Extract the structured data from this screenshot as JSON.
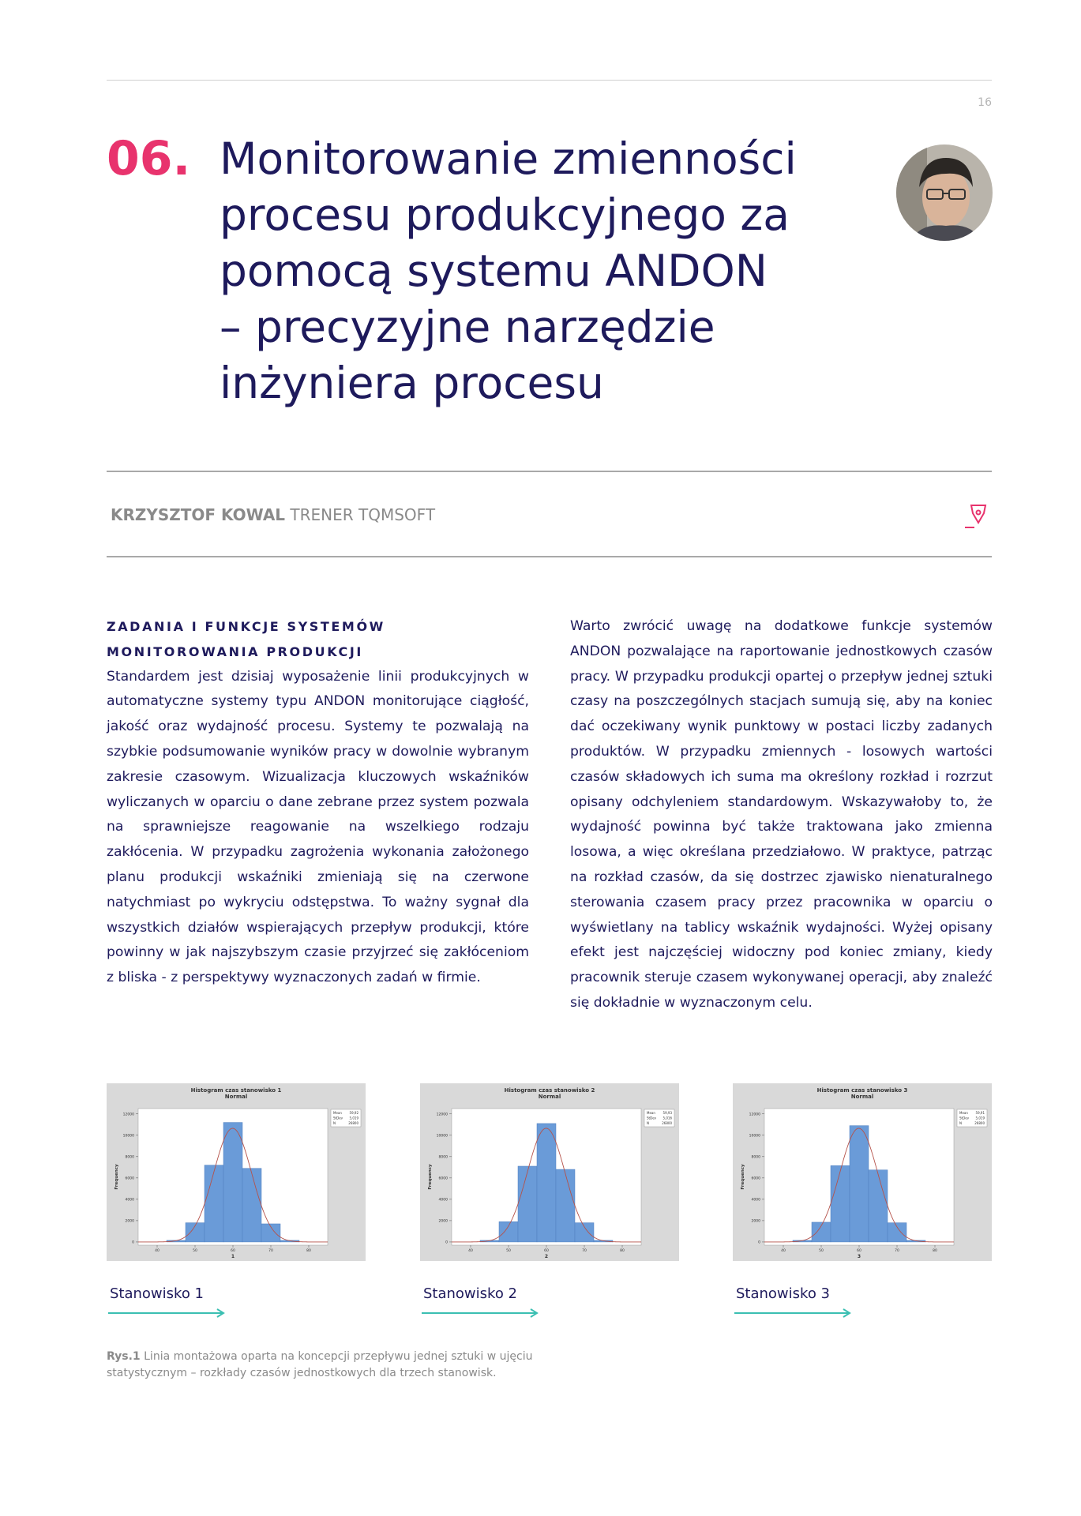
{
  "header": {
    "page_number": "16"
  },
  "article": {
    "number": "06.",
    "title_lines": [
      "Monitorowanie zmienności",
      "procesu produkcyjnego za",
      "pomocą systemu ANDON",
      "– precyzyjne narzędzie",
      "inżyniera procesu"
    ],
    "author": {
      "name": "KRZYSZTOF KOWAL",
      "role": "TRENER TQMSOFT"
    },
    "left_column": {
      "heading": "ZADANIA I FUNKCJE SYSTEMÓW MONITOROWANIA PRODUKCJI",
      "text": "Standardem jest dzisiaj wyposażenie linii produkcyjnych w automatyczne systemy typu ANDON monitorujące ciągłość, jakość oraz wydajność procesu. Systemy te pozwalają na szybkie podsumowanie wyników pracy w dowolnie wybranym zakresie czasowym. Wizualizacja kluczowych wskaźników wyliczanych w oparciu o dane zebrane przez system pozwala na sprawniejsze reagowanie na wszelkiego rodzaju zakłócenia. W przypadku zagrożenia wykonania założonego planu produkcji wskaźniki zmieniają się na czerwone natychmiast po wykryciu odstępstwa. To ważny sygnał dla wszystkich działów wspierających przepływ produkcji, które powinny w jak najszybszym czasie przyjrzeć się zakłóceniom z bliska - z perspektywy wyznaczonych zadań w firmie."
    },
    "right_column": {
      "text": "Warto zwrócić uwagę na dodatkowe funkcje systemów ANDON pozwalające na raportowanie jednostkowych czasów pracy. W przypadku produkcji opartej o przepływ jednej sztuki czasy na poszczególnych stacjach sumują się, aby na koniec dać oczekiwany wynik punktowy w postaci liczby zadanych produktów. W przypadku zmiennych - losowych wartości czasów składowych ich suma ma określony rozkład i rozrzut opisany odchyleniem standardowym. Wskazywałoby to, że wydajność powinna być także traktowana jako zmienna losowa, a więc określana przedziałowo. W praktyce, patrząc na rozkład czasów, da się dostrzec zjawisko nienaturalnego sterowania czasem pracy przez pracownika w oparciu o wyświetlany na tablicy wskaźnik wydajności. Wyżej opisany efekt jest najczęściej widoczny pod koniec zmiany, kiedy pracownik steruje czasem wykonywanej operacji, aby znaleźć się dokładnie w wyznaczonym celu."
    },
    "figure_labels": [
      "Stanowisko 1",
      "Stanowisko 2",
      "Stanowisko 3"
    ],
    "caption": {
      "label": "Rys.1",
      "text": "Linia montażowa oparta na koncepcji przepływu jednej sztuki w ujęciu statystycznym – rozkłady czasów jednostkowych dla trzech stanowisk."
    }
  },
  "chart_data": [
    {
      "type": "histogram",
      "title": "Histogram czas stanowisko 1",
      "subtitle": "Normal",
      "xlabel": "1",
      "ylabel": "Frequency",
      "bins": [
        42.5,
        47.5,
        52.5,
        57.5,
        62.5,
        67.5,
        72.5,
        77.5
      ],
      "values": [
        150,
        1800,
        7200,
        11200,
        6900,
        1700,
        150
      ],
      "color": "#6a9bd8",
      "fit_color": "#b5524a",
      "stats": [
        {
          "name": "Mean",
          "value": 59.92,
          "label": "59,92"
        },
        {
          "name": "StDev",
          "value": 5.019,
          "label": "5,019"
        },
        {
          "name": "N",
          "value": 26800,
          "label": "26800"
        }
      ],
      "xlim": [
        35,
        85
      ],
      "xticks": [
        40,
        50,
        60,
        70,
        80
      ],
      "ylim": [
        -300,
        12500
      ],
      "yticks": [
        0,
        2000,
        4000,
        6000,
        8000,
        10000,
        12000
      ]
    },
    {
      "type": "histogram",
      "title": "Histogram czas stanowisko 2",
      "subtitle": "Normal",
      "xlabel": "2",
      "ylabel": "Frequency",
      "bins": [
        42.5,
        47.5,
        52.5,
        57.5,
        62.5,
        67.5,
        72.5,
        77.5
      ],
      "values": [
        150,
        1900,
        7100,
        11100,
        6800,
        1800,
        150
      ],
      "color": "#6a9bd8",
      "fit_color": "#b5524a",
      "stats": [
        {
          "name": "Mean",
          "value": 59.93,
          "label": "59,93"
        },
        {
          "name": "StDev",
          "value": 5.016,
          "label": "5,016"
        },
        {
          "name": "N",
          "value": 26800,
          "label": "26800"
        }
      ],
      "xlim": [
        35,
        85
      ],
      "xticks": [
        40,
        50,
        60,
        70,
        80
      ],
      "ylim": [
        -300,
        12500
      ],
      "yticks": [
        0,
        2000,
        4000,
        6000,
        8000,
        10000,
        12000
      ]
    },
    {
      "type": "histogram",
      "title": "Histogram czas stanowisko 3",
      "subtitle": "Normal",
      "xlabel": "3",
      "ylabel": "Frequency",
      "bins": [
        42.5,
        47.5,
        52.5,
        57.5,
        62.5,
        67.5,
        72.5,
        77.5
      ],
      "values": [
        150,
        1850,
        7150,
        10900,
        6750,
        1800,
        150
      ],
      "color": "#6a9bd8",
      "fit_color": "#b5524a",
      "stats": [
        {
          "name": "Mean",
          "value": 59.91,
          "label": "59,91"
        },
        {
          "name": "StDev",
          "value": 5.019,
          "label": "5,019"
        },
        {
          "name": "N",
          "value": 26800,
          "label": "26800"
        }
      ],
      "xlim": [
        35,
        85
      ],
      "xticks": [
        40,
        50,
        60,
        70,
        80
      ],
      "ylim": [
        -300,
        12500
      ],
      "yticks": [
        0,
        2000,
        4000,
        6000,
        8000,
        10000,
        12000
      ]
    }
  ]
}
